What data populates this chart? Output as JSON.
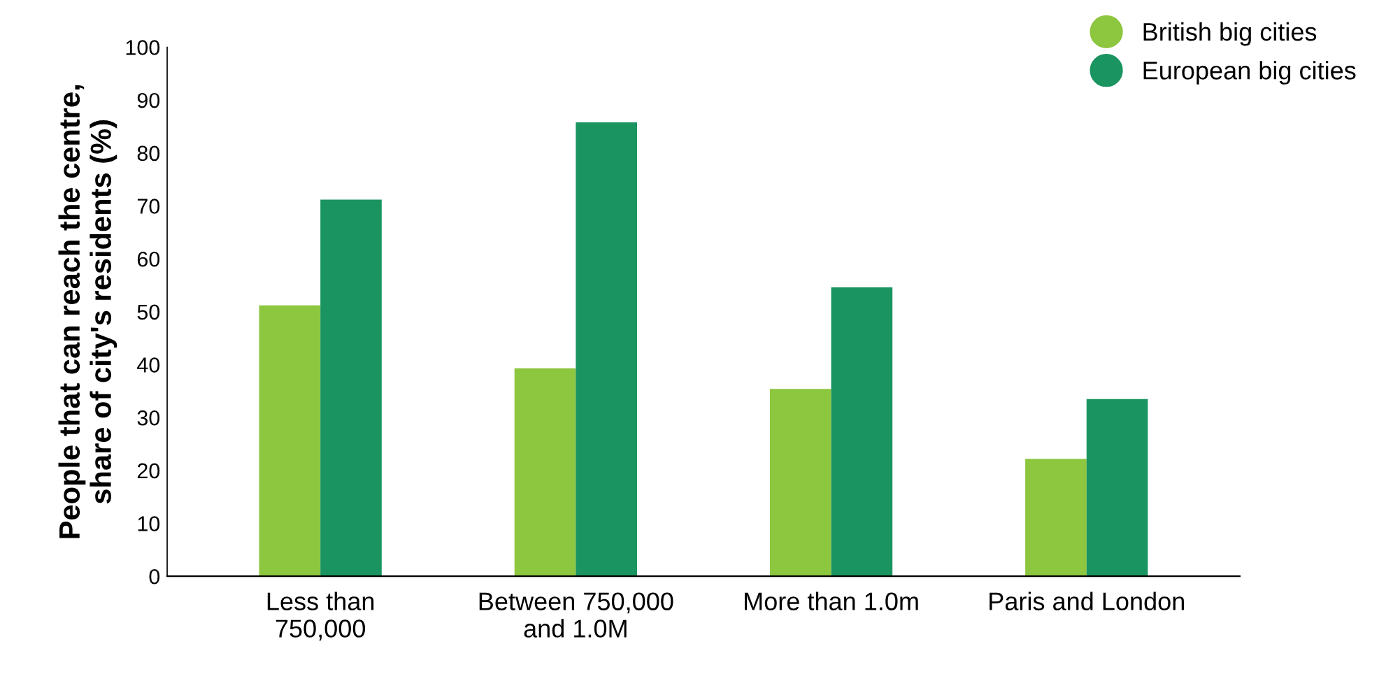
{
  "chart_data": {
    "type": "bar",
    "ylabel": "People that can reach the centre,\nshare of city's residents (%)",
    "categories": [
      "Less than\n750,000",
      "Between 750,000\nand 1.0M",
      "More than 1.0m",
      "Paris and London"
    ],
    "series": [
      {
        "name": "British big cities",
        "color": "#8dc63f",
        "values": [
          51.2,
          39.3,
          35.4,
          22.2
        ]
      },
      {
        "name": "European big cities",
        "color": "#1a9460",
        "values": [
          71.2,
          85.8,
          54.6,
          33.5
        ]
      }
    ],
    "ylim": [
      0,
      100
    ],
    "yticks": [
      0,
      10,
      20,
      30,
      40,
      50,
      60,
      70,
      80,
      90,
      100
    ],
    "grid": false,
    "legend": "top right"
  }
}
